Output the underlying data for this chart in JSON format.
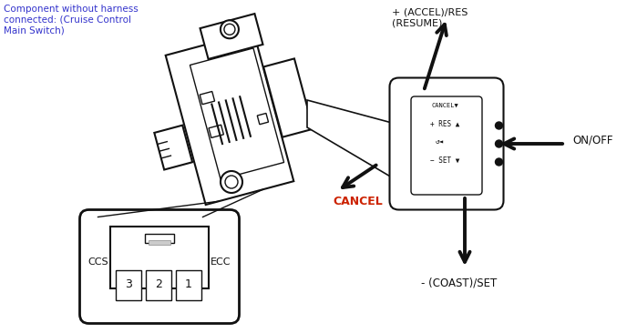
{
  "bg_color": "#ffffff",
  "text_color_blue": "#3333cc",
  "text_color_red": "#cc2200",
  "text_color_black": "#111111",
  "label_top_left_line1": "Component without harness",
  "label_top_left_line2": "connected: (Cruise Control",
  "label_top_left_line3": "Main Switch)",
  "label_accel_line1": "+ (ACCEL)/RES",
  "label_accel_line2": "(RESUME)",
  "label_onoff": "ON/OFF",
  "label_cancel": "CANCEL",
  "label_coast": "- (COAST)/SET",
  "label_ccs": "CCS",
  "label_ecc": "ECC",
  "label_cancel_sw": "CANCEL▼",
  "label_res_sw": "+ RES ▲",
  "label_set_sw": "− SET ▼",
  "label_icon_sw": "↺◄",
  "pin_labels": [
    "3",
    "2",
    "1"
  ],
  "fig_w": 6.88,
  "fig_h": 3.66,
  "dpi": 100
}
